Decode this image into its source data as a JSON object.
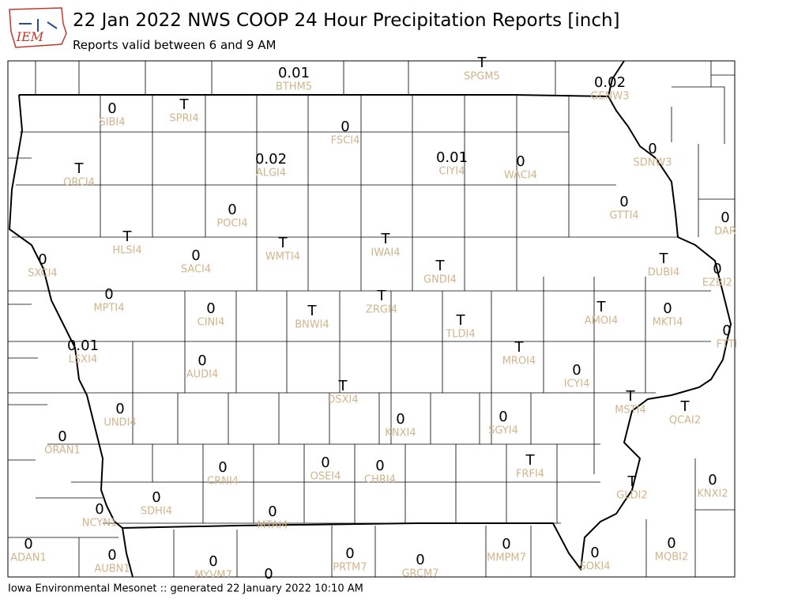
{
  "header": {
    "logo": "IEM",
    "title": "22 Jan 2022 NWS COOP 24 Hour Precipitation Reports [inch]",
    "subtitle": "Reports valid between 6 and 9 AM"
  },
  "footer": "Iowa Environmental Mesonet :: generated 22 January 2022 10:10 AM",
  "stations": [
    {
      "value": "0.01",
      "id": "BTHM5"
    },
    {
      "value": "T",
      "id": "SPGM5"
    },
    {
      "value": "0.02",
      "id": "GENW3"
    },
    {
      "value": "0",
      "id": "SIBI4"
    },
    {
      "value": "T",
      "id": "SPRI4"
    },
    {
      "value": "0",
      "id": "FSCI4"
    },
    {
      "value": "0.02",
      "id": "ALGI4"
    },
    {
      "value": "0.01",
      "id": "CIYI4"
    },
    {
      "value": "0",
      "id": "WACI4"
    },
    {
      "value": "T",
      "id": "ORCI4"
    },
    {
      "value": "0",
      "id": "SDNW3"
    },
    {
      "value": "0",
      "id": "GTTI4"
    },
    {
      "value": "0",
      "id": "DAR"
    },
    {
      "value": "0",
      "id": "POCI4"
    },
    {
      "value": "T",
      "id": "HLSI4"
    },
    {
      "value": "0",
      "id": "SACI4"
    },
    {
      "value": "T",
      "id": "WMTI4"
    },
    {
      "value": "T",
      "id": "IWAI4"
    },
    {
      "value": "T",
      "id": "GNDI4"
    },
    {
      "value": "0",
      "id": "SXCI4"
    },
    {
      "value": "T",
      "id": "DUBI4"
    },
    {
      "value": "0",
      "id": "EZBI2"
    },
    {
      "value": "0",
      "id": "MPTI4"
    },
    {
      "value": "0",
      "id": "CINI4"
    },
    {
      "value": "T",
      "id": "BNWI4"
    },
    {
      "value": "T",
      "id": "ZRGI4"
    },
    {
      "value": "T",
      "id": "AMOI4"
    },
    {
      "value": "0",
      "id": "MKTI4"
    },
    {
      "value": "T",
      "id": "TLDI4"
    },
    {
      "value": "0",
      "id": "FTTI"
    },
    {
      "value": "0.01",
      "id": "LSXI4"
    },
    {
      "value": "0",
      "id": "AUDI4"
    },
    {
      "value": "T",
      "id": "MROI4"
    },
    {
      "value": "0",
      "id": "ICYI4"
    },
    {
      "value": "T",
      "id": "DSXI4"
    },
    {
      "value": "T",
      "id": "MSTI4"
    },
    {
      "value": "T",
      "id": "QCAI2"
    },
    {
      "value": "0",
      "id": "UNDI4"
    },
    {
      "value": "0",
      "id": "KNXI4"
    },
    {
      "value": "0",
      "id": "SGYI4"
    },
    {
      "value": "0",
      "id": "ORAN1"
    },
    {
      "value": "0",
      "id": "CRNI4"
    },
    {
      "value": "0",
      "id": "OSEI4"
    },
    {
      "value": "0",
      "id": "CHRI4"
    },
    {
      "value": "T",
      "id": "FRFI4"
    },
    {
      "value": "0",
      "id": "KNXI2"
    },
    {
      "value": "T",
      "id": "GLDI2"
    },
    {
      "value": "0",
      "id": "SDHI4"
    },
    {
      "value": "0",
      "id": "NCYN1"
    },
    {
      "value": "0",
      "id": "MTAI4"
    },
    {
      "value": "0",
      "id": "ADAN1"
    },
    {
      "value": "0",
      "id": "AUBN1"
    },
    {
      "value": "0",
      "id": "MYVM7"
    },
    {
      "value": "0"
    },
    {
      "value": "0",
      "id": "PRTM7"
    },
    {
      "value": "0",
      "id": "GRCM7"
    },
    {
      "value": "0",
      "id": "MMPM7"
    },
    {
      "value": "0",
      "id": "SOKI4"
    },
    {
      "value": "0",
      "id": "MQBI2"
    }
  ]
}
